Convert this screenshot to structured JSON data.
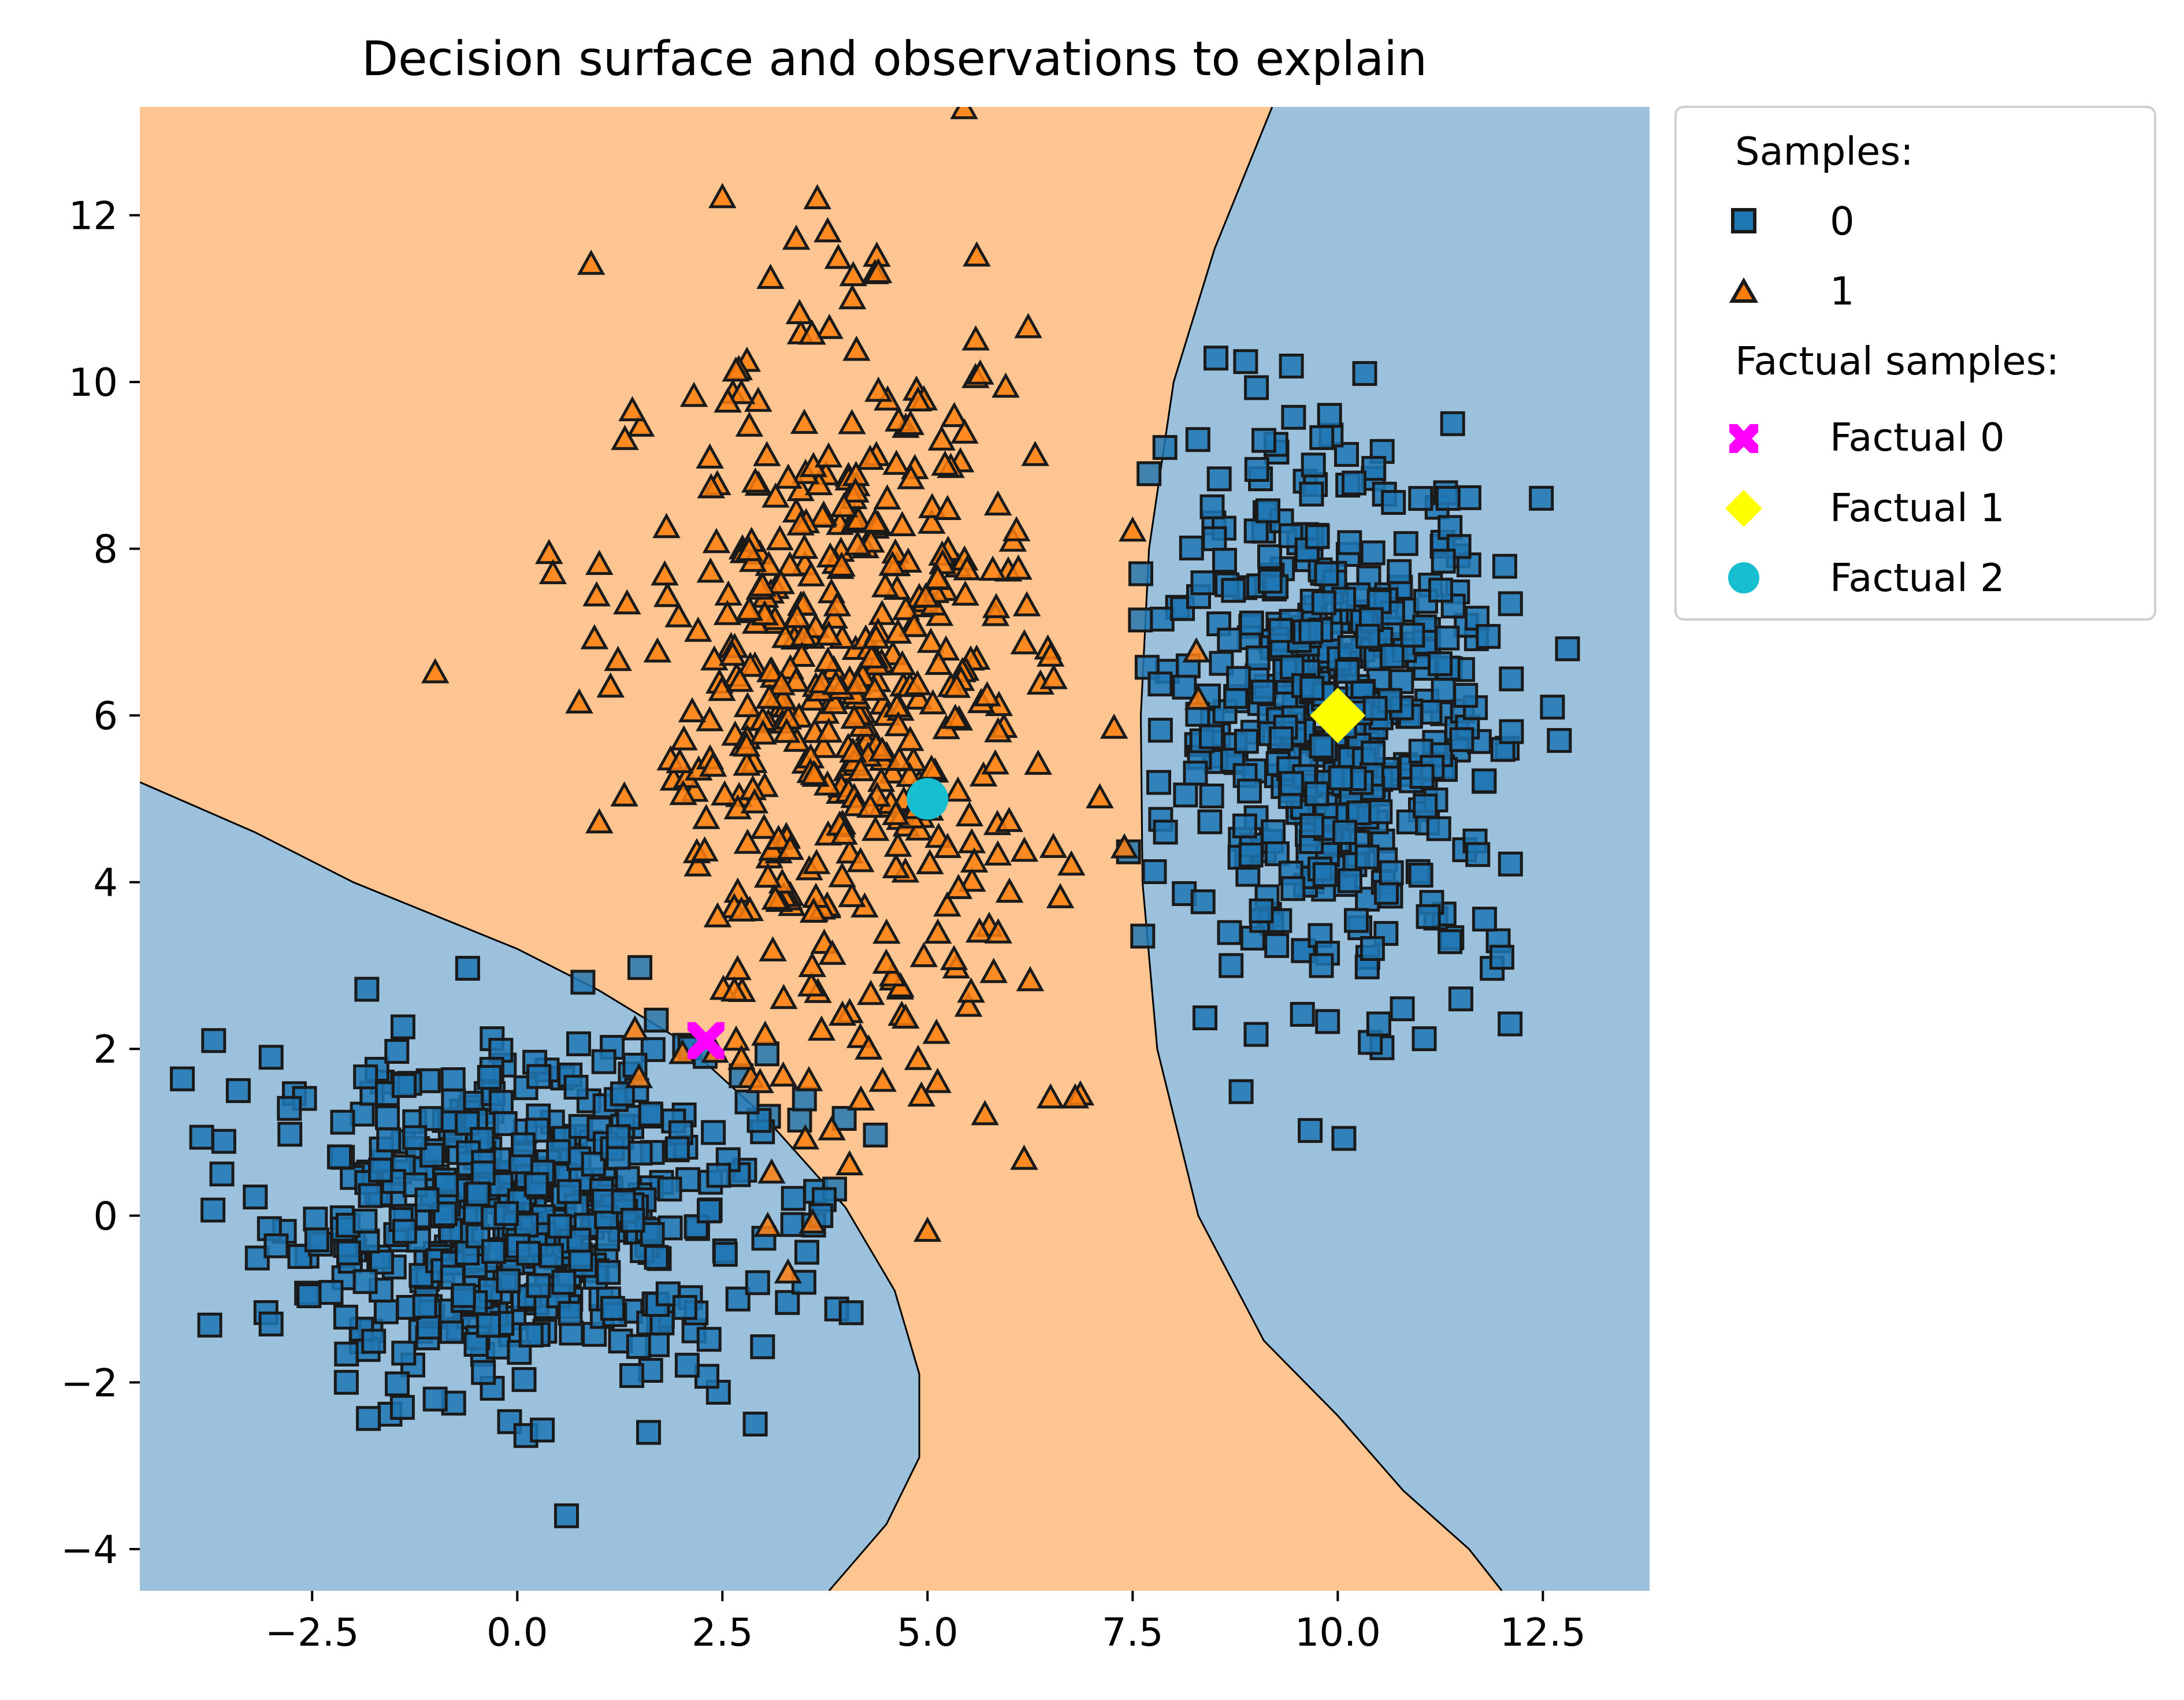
{
  "chart_data": {
    "type": "scatter",
    "title": "Decision surface and observations to explain",
    "xlabel": "",
    "ylabel": "",
    "xlim": [
      -4.6,
      13.8
    ],
    "ylim": [
      -4.5,
      13.3
    ],
    "xticks": [
      -2.5,
      0.0,
      2.5,
      5.0,
      7.5,
      10.0,
      12.5
    ],
    "xtick_labels": [
      "−2.5",
      "0.0",
      "2.5",
      "5.0",
      "7.5",
      "10.0",
      "12.5"
    ],
    "yticks": [
      -4,
      -2,
      0,
      2,
      4,
      6,
      8,
      10,
      12
    ],
    "ytick_labels": [
      "−4",
      "−2",
      "0",
      "2",
      "4",
      "6",
      "8",
      "10",
      "12"
    ],
    "grid": false,
    "legend_position": "outside-upper-right",
    "decision_regions": {
      "class_0_color": "#9cc1dd",
      "class_1_color": "#fdc592",
      "boundary_color": "#000000",
      "class_0_regions": [
        {
          "name": "lower-left-region",
          "boundary_points": [
            [
              -4.6,
              5.2
            ],
            [
              -3.2,
              4.6
            ],
            [
              -2.0,
              4.0
            ],
            [
              -1.0,
              3.6
            ],
            [
              0.0,
              3.2
            ],
            [
              1.0,
              2.7
            ],
            [
              2.0,
              2.1
            ],
            [
              3.0,
              1.2
            ],
            [
              4.0,
              0.1
            ],
            [
              4.6,
              -0.9
            ],
            [
              4.9,
              -1.9
            ],
            [
              4.9,
              -2.9
            ],
            [
              4.5,
              -3.7
            ],
            [
              3.8,
              -4.5
            ]
          ]
        },
        {
          "name": "right-region",
          "boundary_points": [
            [
              9.2,
              13.3
            ],
            [
              8.5,
              11.6
            ],
            [
              8.0,
              10.0
            ],
            [
              7.7,
              8.0
            ],
            [
              7.6,
              6.0
            ],
            [
              7.62,
              4.0
            ],
            [
              7.8,
              2.0
            ],
            [
              8.3,
              0.0
            ],
            [
              9.1,
              -1.5
            ],
            [
              10.0,
              -2.4
            ],
            [
              10.8,
              -3.3
            ],
            [
              11.6,
              -4.0
            ],
            [
              12.0,
              -4.5
            ]
          ]
        }
      ]
    },
    "series": [
      {
        "name": "0",
        "marker": "square",
        "color": "#1f77b4",
        "clusters": [
          {
            "center": [
              0.0,
              0.0
            ],
            "std": [
              1.5,
              1.0
            ],
            "count": 500
          },
          {
            "center": [
              10.0,
              6.0
            ],
            "std": [
              1.0,
              1.5
            ],
            "count": 500
          }
        ],
        "points": [
          [
            -3.7,
            2.1
          ],
          [
            -3.6,
            0.5
          ],
          [
            -3.4,
            1.5
          ],
          [
            -3.0,
            1.9
          ],
          [
            -3.0,
            -1.3
          ],
          [
            -1.4,
            -2.3
          ],
          [
            -1.0,
            -2.2
          ],
          [
            0.6,
            -3.6
          ],
          [
            1.6,
            -2.6
          ],
          [
            2.9,
            -2.5
          ],
          [
            0.8,
            2.8
          ],
          [
            3.5,
            1.4
          ],
          [
            3.7,
            0.0
          ],
          [
            7.6,
            7.7
          ],
          [
            7.7,
            8.9
          ],
          [
            7.9,
            4.6
          ],
          [
            8.7,
            3.0
          ],
          [
            9.1,
            9.3
          ],
          [
            9.8,
            3.0
          ],
          [
            9.9,
            9.6
          ],
          [
            10.5,
            2.3
          ],
          [
            11.4,
            9.5
          ],
          [
            11.5,
            2.6
          ],
          [
            12.1,
            2.3
          ],
          [
            12.0,
            3.1
          ],
          [
            12.8,
            6.8
          ],
          [
            12.7,
            5.7
          ]
        ]
      },
      {
        "name": "1",
        "marker": "triangle",
        "color": "#ff7f0e",
        "clusters": [
          {
            "center": [
              4.0,
              6.0
            ],
            "std": [
              1.2,
              2.2
            ],
            "count": 500
          }
        ],
        "points": [
          [
            0.9,
            11.4
          ],
          [
            2.5,
            12.2
          ],
          [
            3.4,
            11.7
          ],
          [
            5.6,
            11.5
          ],
          [
            4.4,
            11.3
          ],
          [
            1.0,
            7.8
          ],
          [
            1.0,
            4.7
          ],
          [
            -1.0,
            6.5
          ],
          [
            3.3,
            -0.7
          ],
          [
            5.0,
            -0.2
          ],
          [
            6.5,
            1.4
          ],
          [
            6.8,
            1.4
          ],
          [
            7.1,
            5.0
          ],
          [
            7.4,
            4.4
          ],
          [
            5.7,
            1.2
          ],
          [
            3.6,
            -0.1
          ],
          [
            3.1,
            0.5
          ],
          [
            7.5,
            8.2
          ],
          [
            6.5,
            6.7
          ]
        ]
      }
    ],
    "factual_samples": [
      {
        "label": "Factual 0",
        "x": 2.3,
        "y": 2.1,
        "marker": "x",
        "color": "#ff00ff"
      },
      {
        "label": "Factual 1",
        "x": 10.0,
        "y": 6.0,
        "marker": "diamond",
        "color": "#ffff00"
      },
      {
        "label": "Factual 2",
        "x": 5.0,
        "y": 5.0,
        "marker": "circle",
        "color": "#17becf"
      }
    ],
    "legend": {
      "samples_heading": "Samples:",
      "series_labels": [
        "0",
        "1"
      ],
      "factual_heading": "Factual samples:",
      "factual_labels": [
        "Factual 0",
        "Factual 1",
        "Factual 2"
      ]
    }
  }
}
